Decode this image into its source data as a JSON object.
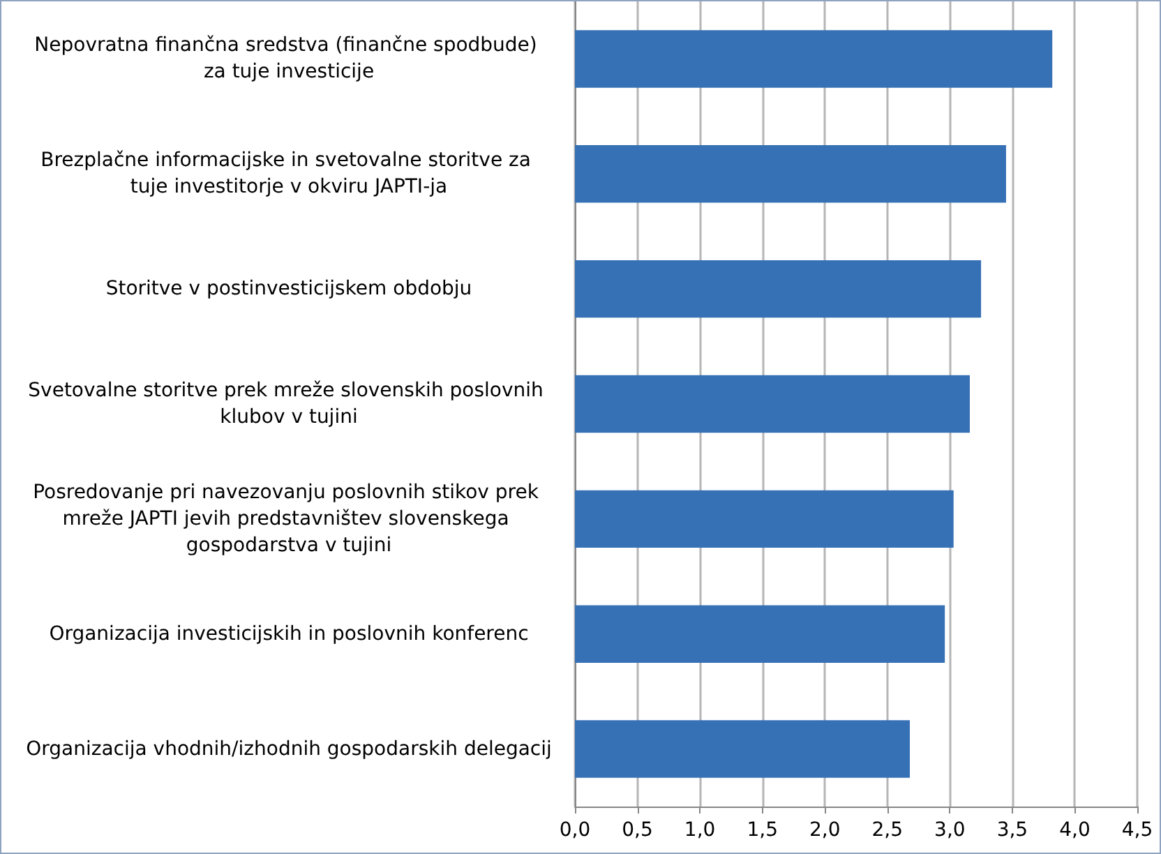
{
  "chart_data": {
    "type": "bar",
    "orientation": "horizontal",
    "categories": [
      "Nepovratna finančna sredstva (finančne spodbude) za tuje investicije",
      "Brezplačne informacijske in svetovalne storitve za tuje investitorje v okviru JAPTI-ja",
      "Storitve v postinvesticijskem obdobju",
      "Svetovalne storitve prek mreže slovenskih poslovnih klubov v tujini",
      "Posredovanje pri navezovanju poslovnih stikov prek mreže JAPTI jevih predstavništev slovenskega gospodarstva v tujini",
      "Organizacija investicijskih in poslovnih konferenc",
      "Organizacija vhodnih/izhodnih gospodarskih delegacij"
    ],
    "values": [
      3.82,
      3.45,
      3.25,
      3.16,
      3.03,
      2.96,
      2.68
    ],
    "color": "#3670b5",
    "xlim": [
      0,
      4.5
    ],
    "xticks": [
      {
        "value": 0,
        "label": "0,0"
      },
      {
        "value": 0.5,
        "label": "0,5"
      },
      {
        "value": 1,
        "label": "1,0"
      },
      {
        "value": 1.5,
        "label": "1,5"
      },
      {
        "value": 2,
        "label": "2,0"
      },
      {
        "value": 2.5,
        "label": "2,5"
      },
      {
        "value": 3,
        "label": "3,0"
      },
      {
        "value": 3.5,
        "label": "3,5"
      },
      {
        "value": 4,
        "label": "4,0"
      },
      {
        "value": 4.5,
        "label": "4,5"
      }
    ],
    "grid": "x"
  }
}
